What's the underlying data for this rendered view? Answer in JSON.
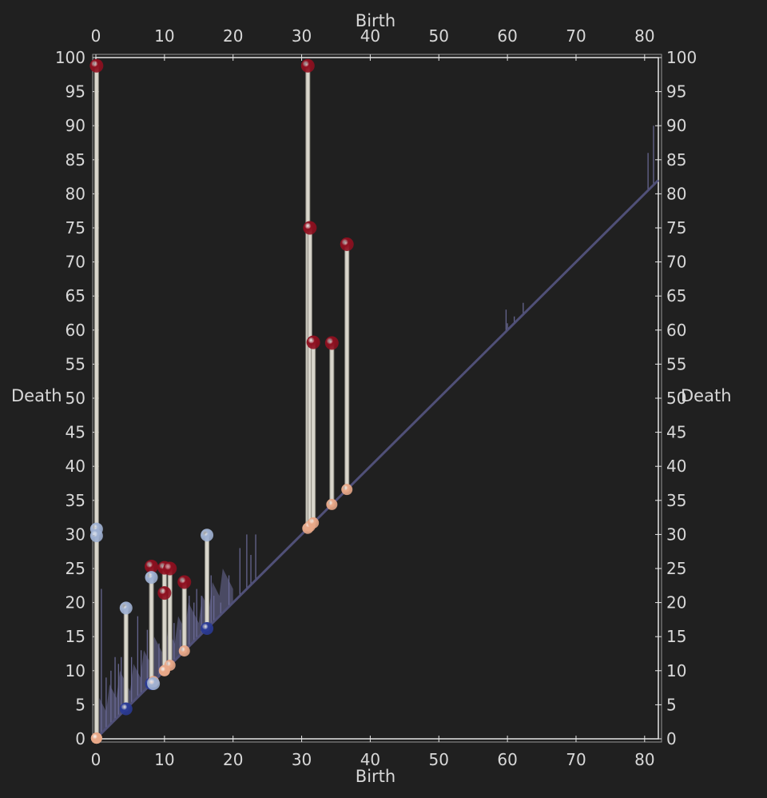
{
  "chart_data": {
    "type": "scatter",
    "xlabel": "Birth",
    "ylabel": "Death",
    "xlim": [
      0,
      82
    ],
    "ylim": [
      0,
      100
    ],
    "x_ticks": [
      "0",
      "10",
      "20",
      "30",
      "40",
      "50",
      "60",
      "70",
      "80"
    ],
    "y_ticks": [
      "0",
      "5",
      "10",
      "15",
      "20",
      "25",
      "30",
      "35",
      "40",
      "45",
      "50",
      "55",
      "60",
      "65",
      "70",
      "75",
      "80",
      "85",
      "90",
      "95",
      "100"
    ],
    "colors": {
      "background": "#202020",
      "axes": "#e6e6e6",
      "diagonal": "#505078",
      "bars": "#6d6d9a",
      "stem": "#d9d6cc",
      "saddle_max": "#8e0f1f",
      "saddle_saddle": "#9fb1d2",
      "min_saddle": "#2a3a95",
      "birth_point": "#e8a888"
    },
    "pairs": [
      {
        "birth": 0.1,
        "death": 98.8,
        "birth_type": "min",
        "death_type": "max"
      },
      {
        "birth": 0.1,
        "death": 30.8,
        "birth_type": "min",
        "death_type": "saddle"
      },
      {
        "birth": 0.1,
        "death": 29.8,
        "birth_type": "min",
        "death_type": "saddle"
      },
      {
        "birth": 4.4,
        "death": 19.2,
        "birth_type": "min-saddle",
        "death_type": "saddle"
      },
      {
        "birth": 8.1,
        "death": 25.3,
        "birth_type": "min-saddle",
        "death_type": "max"
      },
      {
        "birth": 8.1,
        "death": 23.7,
        "birth_type": "min-saddle",
        "death_type": "saddle"
      },
      {
        "birth": 8.4,
        "death": 8.1,
        "birth_type": "min",
        "death_type": "saddle"
      },
      {
        "birth": 10.0,
        "death": 25.1,
        "birth_type": "min",
        "death_type": "max"
      },
      {
        "birth": 10.0,
        "death": 21.4,
        "birth_type": "min",
        "death_type": "max"
      },
      {
        "birth": 10.8,
        "death": 25.0,
        "birth_type": "min",
        "death_type": "max"
      },
      {
        "birth": 12.9,
        "death": 23.0,
        "birth_type": "min",
        "death_type": "max"
      },
      {
        "birth": 16.2,
        "death": 29.9,
        "birth_type": "min-saddle",
        "death_type": "saddle"
      },
      {
        "birth": 30.9,
        "death": 98.8,
        "birth_type": "min",
        "death_type": "max"
      },
      {
        "birth": 31.2,
        "death": 75.0,
        "birth_type": "min",
        "death_type": "max"
      },
      {
        "birth": 31.7,
        "death": 58.2,
        "birth_type": "min",
        "death_type": "max"
      },
      {
        "birth": 34.4,
        "death": 58.1,
        "birth_type": "min",
        "death_type": "max"
      },
      {
        "birth": 36.6,
        "death": 72.6,
        "birth_type": "min",
        "death_type": "max"
      }
    ],
    "spikes": [
      {
        "x": 0.3,
        "y": 91
      },
      {
        "x": 0.8,
        "y": 22
      },
      {
        "x": 1.5,
        "y": 9
      },
      {
        "x": 2.2,
        "y": 10
      },
      {
        "x": 2.8,
        "y": 12
      },
      {
        "x": 3.3,
        "y": 11
      },
      {
        "x": 3.7,
        "y": 12
      },
      {
        "x": 4.2,
        "y": 10
      },
      {
        "x": 5.2,
        "y": 12
      },
      {
        "x": 6.1,
        "y": 18
      },
      {
        "x": 6.6,
        "y": 13
      },
      {
        "x": 7.5,
        "y": 16
      },
      {
        "x": 9.2,
        "y": 14
      },
      {
        "x": 11.4,
        "y": 17
      },
      {
        "x": 12.3,
        "y": 16
      },
      {
        "x": 13.6,
        "y": 21
      },
      {
        "x": 14.3,
        "y": 20
      },
      {
        "x": 14.7,
        "y": 22
      },
      {
        "x": 15.4,
        "y": 21
      },
      {
        "x": 16.8,
        "y": 24
      },
      {
        "x": 17.2,
        "y": 21
      },
      {
        "x": 18.2,
        "y": 20
      },
      {
        "x": 19.4,
        "y": 24
      },
      {
        "x": 21.0,
        "y": 28
      },
      {
        "x": 22.0,
        "y": 30
      },
      {
        "x": 22.6,
        "y": 27
      },
      {
        "x": 23.3,
        "y": 30
      },
      {
        "x": 59.8,
        "y": 63
      },
      {
        "x": 60.0,
        "y": 61
      },
      {
        "x": 61.0,
        "y": 62
      },
      {
        "x": 62.3,
        "y": 64
      },
      {
        "x": 80.5,
        "y": 86
      },
      {
        "x": 81.3,
        "y": 90
      }
    ]
  }
}
